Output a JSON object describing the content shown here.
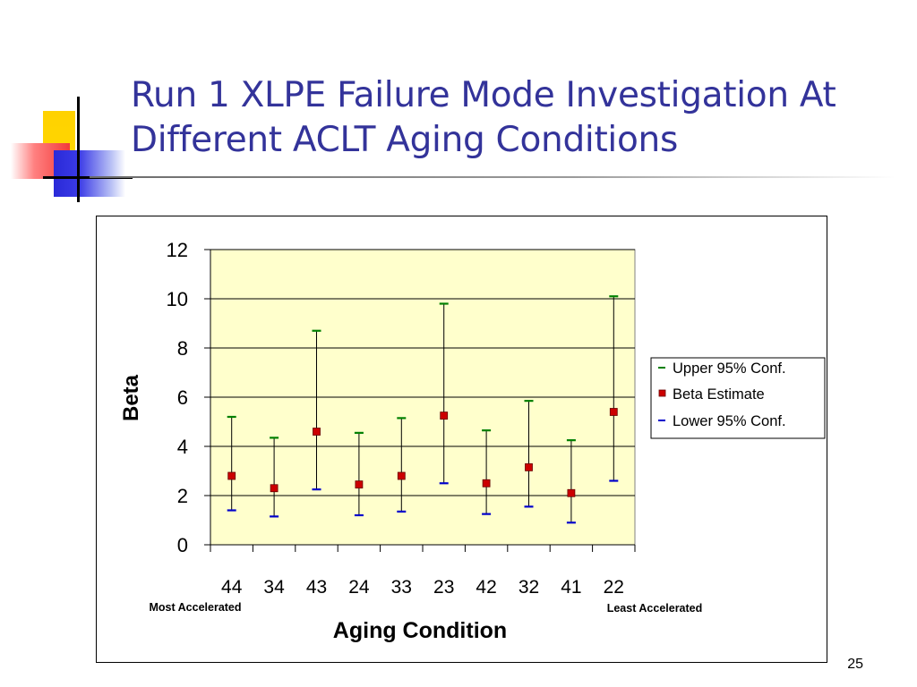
{
  "slide": {
    "title_line1": "Run 1 XLPE Failure Mode Investigation At",
    "title_line2": "Different ACLT Aging Conditions",
    "page_number": "25"
  },
  "colors": {
    "title": "#33339a",
    "plot_bg": "#ffffcc",
    "upper_marker": "#008000",
    "estimate_marker": "#cc0000",
    "lower_marker": "#0000cc"
  },
  "chart_data": {
    "type": "scatter",
    "title": "",
    "xlabel": "Aging Condition",
    "ylabel": "Beta",
    "ylim": [
      0,
      12
    ],
    "yticks": [
      "0",
      "2",
      "4",
      "6",
      "8",
      "10",
      "12"
    ],
    "grid": true,
    "legend_position": "right",
    "categories": [
      "44",
      "34",
      "43",
      "24",
      "33",
      "23",
      "42",
      "32",
      "41",
      "22"
    ],
    "category_annotations": {
      "left": "Most Accelerated",
      "right": "Least Accelerated"
    },
    "series": [
      {
        "name": "Upper 95% Conf.",
        "values": [
          5.2,
          4.35,
          8.7,
          4.55,
          5.15,
          9.8,
          4.65,
          5.85,
          4.25,
          10.1
        ]
      },
      {
        "name": "Beta Estimate",
        "values": [
          2.8,
          2.3,
          4.6,
          2.45,
          2.8,
          5.25,
          2.5,
          3.15,
          2.1,
          5.4
        ]
      },
      {
        "name": "Lower 95% Conf.",
        "values": [
          1.4,
          1.15,
          2.25,
          1.2,
          1.35,
          2.5,
          1.25,
          1.55,
          0.9,
          2.6
        ]
      }
    ]
  }
}
